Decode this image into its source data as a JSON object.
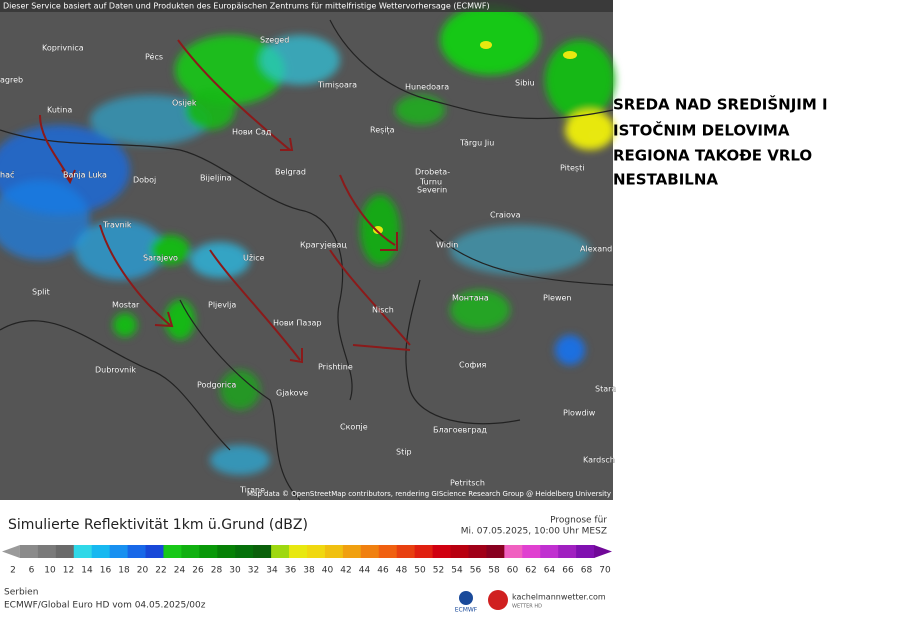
{
  "header": {
    "attribution": "Dieser Service basiert auf Daten und Produkten des Europäischen Zentrums für mittelfristige Wettervorhersage (ECMWF)"
  },
  "map": {
    "cities": [
      "Koprivnica",
      "Pécs",
      "Szeged",
      "Osijek",
      "agreb",
      "Kutina",
      "Timișoara",
      "Hunedoara",
      "Sibiu",
      "Нови Сад",
      "Reșița",
      "Târgu Jiu",
      "hać",
      "Banja Luka",
      "Doboj",
      "Bijeljina",
      "Belgrad",
      "Drobeta-",
      "Turnu",
      "Severin",
      "Pitești",
      "Travnik",
      "Craiova",
      "Sarajevo",
      "Užice",
      "Крагујевац",
      "Widin",
      "Alexand",
      "Split",
      "Mostar",
      "Pljevlja",
      "Nisch",
      "Монтана",
      "Plewen",
      "Нови Пазар",
      "Dubrovnik",
      "Podgorica",
      "Prishtine",
      "София",
      "Plowdiw",
      "Gjakove",
      "Скопје",
      "Благоевград",
      "Stip",
      "Kardsch",
      "Tirane",
      "Petritsch",
      "Stara"
    ],
    "credit": "Map data © OpenStreetMap contributors, rendering GIScience Research Group @ Heidelberg University"
  },
  "annotation": {
    "lines": [
      "SREDA NAD SREDIŠNJIM I",
      "ISTOČNIM DELOVIMA",
      "REGIONA TAKOĐE VRLO",
      "NESTABILNA"
    ]
  },
  "legend": {
    "title": "Simulierte Reflektivität 1km ü.Grund (dBZ)",
    "forecast_label": "Prognose für",
    "forecast_time": "Mi. 07.05.2025, 10:00 Uhr MESZ",
    "ticks": [
      2,
      6,
      10,
      12,
      14,
      16,
      18,
      20,
      22,
      24,
      26,
      28,
      30,
      32,
      34,
      36,
      38,
      40,
      42,
      44,
      46,
      48,
      50,
      52,
      54,
      56,
      58,
      60,
      62,
      64,
      66,
      68,
      70
    ],
    "colors": [
      "#9a9a9a",
      "#8a8a8a",
      "#7a7a7a",
      "#6a6a6a",
      "#2fd8e8",
      "#17b8f0",
      "#1890f0",
      "#1868e8",
      "#1848d8",
      "#18c818",
      "#10b010",
      "#089808",
      "#068006",
      "#05700a",
      "#0a600a",
      "#9ed810",
      "#e8e810",
      "#f0d810",
      "#f0c010",
      "#f0a010",
      "#f08010",
      "#f06010",
      "#e84010",
      "#e02010",
      "#d00010",
      "#b80010",
      "#a00018",
      "#880020",
      "#f060c0",
      "#e040d0",
      "#c030d0",
      "#a020c0",
      "#8010b0",
      "#700898"
    ],
    "region": "Serbien",
    "model": "ECMWF/Global Euro HD vom  04.05.2025/00z",
    "logo_ecmwf": "ECMWF",
    "logo_site": "kachelmannwetter.com",
    "logo_sub": "WETTER HD"
  }
}
